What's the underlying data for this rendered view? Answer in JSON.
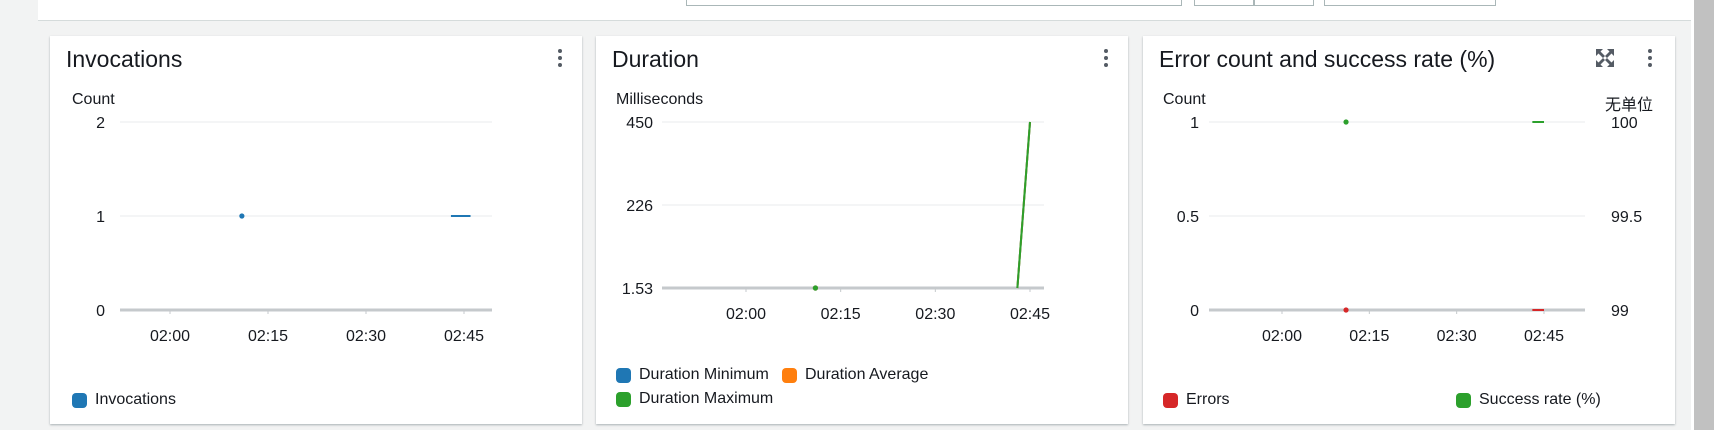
{
  "widgets": [
    {
      "title": "Invocations",
      "unit": "Count",
      "legend": [
        {
          "label": "Invocations",
          "color": "#1f77b4"
        }
      ]
    },
    {
      "title": "Duration",
      "unit": "Milliseconds",
      "legend": [
        {
          "label": "Duration Minimum",
          "color": "#1f77b4"
        },
        {
          "label": "Duration Average",
          "color": "#ff7f0e"
        },
        {
          "label": "Duration Maximum",
          "color": "#2ca02c"
        }
      ]
    },
    {
      "title": "Error count and success rate (%)",
      "unit": "Count",
      "unit_right": "无单位",
      "legend": [
        {
          "label": "Errors",
          "color": "#d62728"
        },
        {
          "label": "Success rate (%)",
          "color": "#2ca02c"
        }
      ]
    }
  ],
  "chart_data": [
    {
      "type": "line",
      "title": "Invocations",
      "ylabel": "Count",
      "ylim": [
        0,
        2
      ],
      "yticks": [
        "0",
        "1",
        "2"
      ],
      "xticks": [
        "02:00",
        "02:15",
        "02:30",
        "02:45"
      ],
      "grid": true,
      "legend_position": "bottom",
      "series": [
        {
          "name": "Invocations",
          "color": "#1f77b4",
          "points": [
            [
              "02:11",
              1
            ],
            [
              "02:43",
              1
            ],
            [
              "02:46",
              1
            ]
          ]
        }
      ]
    },
    {
      "type": "line",
      "title": "Duration",
      "ylabel": "Milliseconds",
      "ylim": [
        1.53,
        450
      ],
      "yticks": [
        "1.53",
        "226",
        "450"
      ],
      "xticks": [
        "02:00",
        "02:15",
        "02:30",
        "02:45"
      ],
      "grid": true,
      "legend_position": "bottom",
      "series": [
        {
          "name": "Duration Minimum",
          "color": "#1f77b4",
          "points": [
            [
              "02:11",
              1.53
            ],
            [
              "02:43",
              1.53
            ],
            [
              "02:45",
              450
            ]
          ]
        },
        {
          "name": "Duration Average",
          "color": "#ff7f0e",
          "points": [
            [
              "02:11",
              1.53
            ],
            [
              "02:43",
              1.53
            ],
            [
              "02:45",
              450
            ]
          ]
        },
        {
          "name": "Duration Maximum",
          "color": "#2ca02c",
          "points": [
            [
              "02:11",
              1.53
            ],
            [
              "02:43",
              1.53
            ],
            [
              "02:45",
              450
            ]
          ]
        }
      ]
    },
    {
      "type": "line",
      "title": "Error count and success rate (%)",
      "ylabel": "Count",
      "ylabel_right": "无单位",
      "ylim": [
        0,
        1
      ],
      "ylim_right": [
        99,
        100
      ],
      "yticks": [
        "0",
        "0.5",
        "1"
      ],
      "yticks_right": [
        "99",
        "99.5",
        "100"
      ],
      "xticks": [
        "02:00",
        "02:15",
        "02:30",
        "02:45"
      ],
      "grid": true,
      "legend_position": "bottom",
      "series": [
        {
          "name": "Errors",
          "color": "#d62728",
          "axis": "left",
          "points": [
            [
              "02:11",
              0
            ],
            [
              "02:43",
              0
            ],
            [
              "02:45",
              0
            ]
          ]
        },
        {
          "name": "Success rate (%)",
          "color": "#2ca02c",
          "axis": "right",
          "points": [
            [
              "02:11",
              100
            ],
            [
              "02:43",
              100
            ],
            [
              "02:45",
              100
            ]
          ]
        }
      ]
    }
  ]
}
